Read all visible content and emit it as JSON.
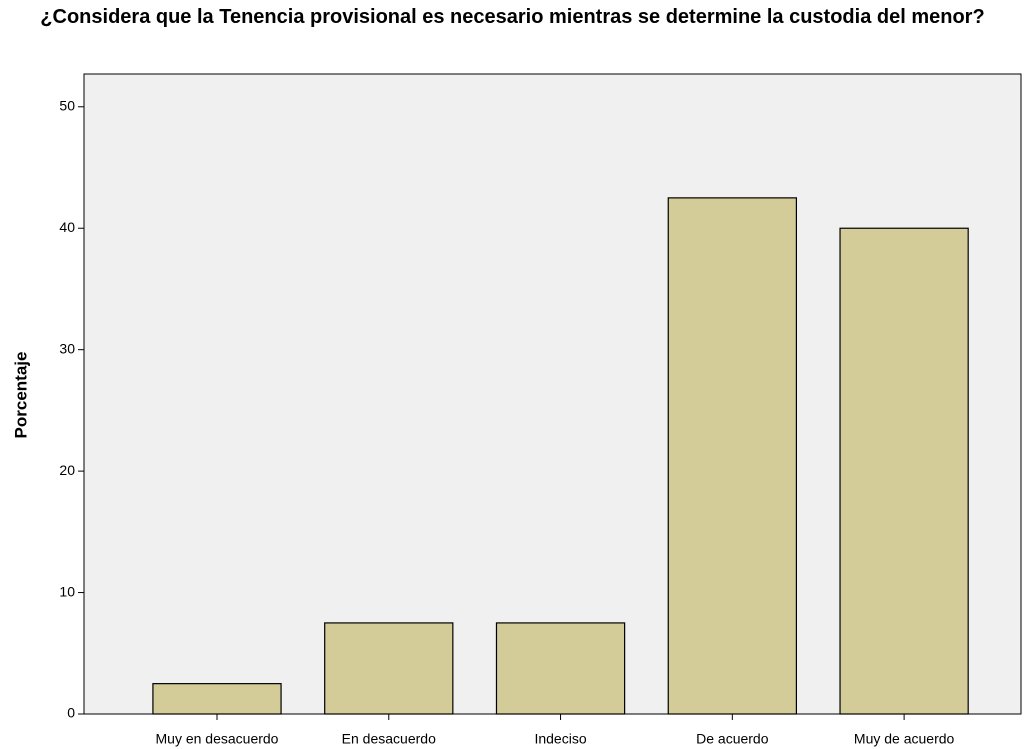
{
  "chart_data": {
    "type": "bar",
    "title": "¿Considera que la Tenencia provisional es necesario mientras se determine la custodia del menor?",
    "y_label": "Porcentaje",
    "categories": [
      "Muy en desacuerdo",
      "En desacuerdo",
      "Indeciso",
      "De acuerdo",
      "Muy de acuerdo"
    ],
    "values": [
      2.5,
      7.5,
      7.5,
      42.5,
      40
    ],
    "color": "#d4cc98",
    "ylim": [
      0,
      52.7
    ],
    "yticks": [
      0,
      10,
      20,
      30,
      40,
      50
    ],
    "grid": false
  }
}
